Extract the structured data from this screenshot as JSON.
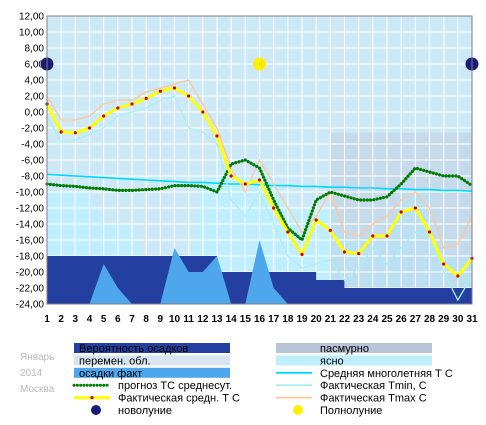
{
  "chart_data": {
    "type": "line",
    "x": [
      1,
      2,
      3,
      4,
      5,
      6,
      7,
      8,
      9,
      10,
      11,
      12,
      13,
      14,
      15,
      16,
      17,
      18,
      19,
      20,
      21,
      22,
      23,
      24,
      25,
      26,
      27,
      28,
      29,
      30,
      31
    ],
    "xlim": [
      1,
      31
    ],
    "ylim": [
      -24,
      12
    ],
    "yticks": [
      "12,00",
      "10,00",
      "8,00",
      "6,00",
      "4,00",
      "2,00",
      "0,00",
      "-2,00",
      "-4,00",
      "-6,00",
      "-8,00",
      "-10,00",
      "-12,00",
      "-14,00",
      "-16,00",
      "-18,00",
      "-20,00",
      "-22,00",
      "-24,00"
    ],
    "grid": true,
    "series": [
      {
        "name": "Фактическая средн. Т С",
        "color": "#ffff00",
        "values": [
          1,
          -2.5,
          -2.6,
          -2,
          -0.5,
          0.5,
          1,
          1.7,
          2.6,
          3,
          2,
          0,
          -3,
          -8,
          -9,
          -8.5,
          -12,
          -15,
          -17.8,
          -13.5,
          -14.8,
          -17.5,
          -17.7,
          -15.5,
          -15.5,
          -12.5,
          -12,
          -15,
          -19,
          -20.5,
          -18.3
        ]
      },
      {
        "name": "Фактическая Tmin, C",
        "color": "#aeeeee",
        "values": [
          -0.5,
          -3.7,
          -3.5,
          -2.8,
          -2,
          -0.5,
          0,
          0.5,
          1.5,
          2,
          -2,
          -2.5,
          -4,
          -11,
          -13,
          -10,
          -14,
          -18,
          -19.5,
          -19,
          -18.5,
          -21,
          -19.5,
          -17,
          -19,
          -17,
          -15,
          -15.5,
          -20,
          -23.5,
          -20.5
        ]
      },
      {
        "name": "Фактическая Tmax C",
        "color": "#ffc896",
        "values": [
          2,
          -1,
          -1,
          -0.5,
          1,
          1.5,
          1.5,
          2.5,
          3,
          3.5,
          4,
          1,
          -2,
          -7,
          -10,
          -6,
          -9,
          -12,
          -15,
          -13,
          -10,
          -15,
          -15.5,
          -14,
          -13,
          -11,
          -10,
          -12,
          -17,
          -16.5,
          -13
        ]
      },
      {
        "name": "прогноз ТС среднесут.",
        "color": "#007a00",
        "values": [
          -9,
          -9.2,
          -9.3,
          -9.5,
          -9.6,
          -9.8,
          -9.8,
          -9.7,
          -9.6,
          -9.2,
          -9.2,
          -9.3,
          -10,
          -6.5,
          -6,
          -7,
          -11,
          -14.5,
          -16,
          -11,
          -10,
          -10.5,
          -11,
          -11,
          -10.6,
          -9,
          -7,
          -7.5,
          -8,
          -8,
          -9.2
        ]
      },
      {
        "name": "Средняя многолетняя Т С",
        "color": "#00d8ff",
        "values": [
          -7.8,
          -7.9,
          -8,
          -8.1,
          -8.2,
          -8.3,
          -8.4,
          -8.5,
          -8.6,
          -8.7,
          -8.8,
          -8.8,
          -8.9,
          -9,
          -9,
          -9.1,
          -9.2,
          -9.2,
          -9.3,
          -9.3,
          -9.4,
          -9.4,
          -9.5,
          -9.5,
          -9.6,
          -9.6,
          -9.7,
          -9.7,
          -9.8,
          -9.8,
          -9.9
        ]
      }
    ],
    "precip_prob": [
      -18,
      -18,
      -18,
      -18,
      -18,
      -18,
      -18,
      -18,
      -18,
      -18,
      -18,
      -18,
      -20,
      -20,
      -20,
      -20,
      -20,
      -20,
      -20,
      -21,
      -21,
      -22,
      -22,
      -22,
      -22,
      -22,
      -22,
      -22,
      -22,
      -22,
      -22
    ],
    "precip_fact": [
      -24,
      -24,
      -24,
      -24,
      -19,
      -22,
      -24,
      -24,
      -24,
      -17,
      -20,
      -20,
      -18,
      -24,
      -24,
      -16,
      -22,
      -24,
      -24,
      -24,
      -24,
      -24,
      -24,
      -24,
      -24,
      -24,
      -24,
      -24,
      -24,
      -24,
      -24
    ],
    "new_moon_days": [
      1,
      31
    ],
    "full_moon_days": [
      16
    ],
    "moon_y": 6,
    "legend": [
      {
        "label": "Вероятность осадков",
        "kind": "box",
        "color": "#2340a0"
      },
      {
        "label": "пасмурно",
        "kind": "box",
        "color": "#b8c4d8"
      },
      {
        "label": "перемен. обл.",
        "kind": "box",
        "color": "#d8e4f0"
      },
      {
        "label": "ясно",
        "kind": "box",
        "color": "#bfefff"
      },
      {
        "label": "осадки факт",
        "kind": "box",
        "color": "#4ea6ec"
      },
      {
        "label": "Средняя многолетняя Т С",
        "kind": "line",
        "color": "#00d8ff"
      },
      {
        "label": "прогноз ТС среднесут.",
        "kind": "dots",
        "color": "#007a00"
      },
      {
        "label": "Фактическая Tmin, C",
        "kind": "line",
        "color": "#aeeeee"
      },
      {
        "label": "Фактическая средн. Т С",
        "kind": "line",
        "color": "#ffff00"
      },
      {
        "label": "Фактическая Tmax C",
        "kind": "line",
        "color": "#ffc896"
      },
      {
        "label": "новолуние",
        "kind": "circle",
        "color": "#1a1a78"
      },
      {
        "label": "Полнолуние",
        "kind": "circle",
        "color": "#ffee00"
      }
    ],
    "side_labels": [
      "Январь",
      "2014",
      "Москва"
    ]
  }
}
